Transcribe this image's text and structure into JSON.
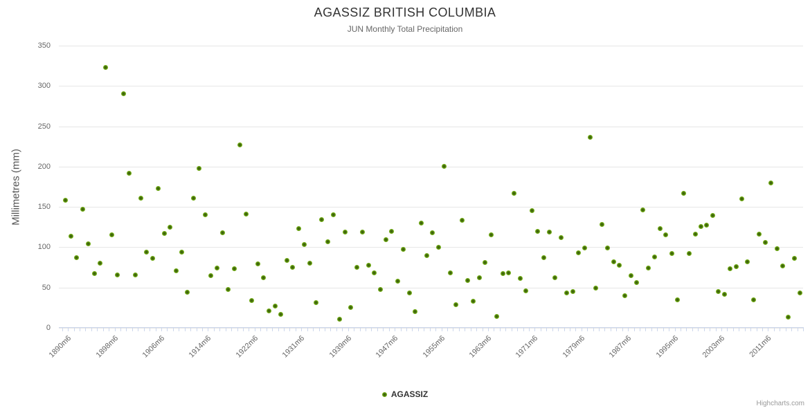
{
  "header": {
    "title": "AGASSIZ BRITISH COLUMBIA",
    "subtitle": "JUN Monthly Total Precipitation"
  },
  "legend": {
    "items": [
      {
        "label": "AGASSIZ",
        "marker": "circle-icon"
      }
    ]
  },
  "credits": {
    "label": "Highcharts.com"
  },
  "colors": {
    "point_outer": "#7ab41d",
    "point_inner": "#3f650d",
    "grid": "#e6e6e6",
    "axis_line": "#ccd6eb",
    "text_primary": "#333333",
    "text_secondary": "#666666"
  },
  "chart_data": {
    "type": "scatter",
    "title": "AGASSIZ BRITISH COLUMBIA",
    "subtitle": "JUN Monthly Total Precipitation",
    "xlabel": "",
    "ylabel": "Millimetres (mm)",
    "ylim": [
      0,
      350
    ],
    "y_ticks": [
      0,
      50,
      100,
      150,
      200,
      250,
      300,
      350
    ],
    "grid": true,
    "legend_position": "bottom-center",
    "x_tick_positions": [
      0,
      8,
      16,
      24,
      32,
      40,
      48,
      56,
      64,
      72,
      80,
      88,
      96,
      104,
      112,
      120
    ],
    "x_tick_labels": [
      "1890m6",
      "1898m6",
      "1906m6",
      "1914m6",
      "1922m6",
      "1931m6",
      "1939m6",
      "1947m6",
      "1955m6",
      "1963m6",
      "1971m6",
      "1979m6",
      "1987m6",
      "1995m6",
      "2003m6",
      "2011m6"
    ],
    "series": [
      {
        "name": "AGASSIZ",
        "color": "#7ab41d",
        "values": [
          158,
          114,
          87,
          147,
          104,
          67,
          80,
          323,
          115,
          66,
          290,
          192,
          66,
          161,
          94,
          86,
          173,
          117,
          125,
          71,
          94,
          44,
          161,
          198,
          140,
          65,
          74,
          118,
          48,
          73,
          227,
          141,
          34,
          79,
          62,
          21,
          27,
          17,
          84,
          75,
          123,
          103,
          80,
          31,
          134,
          107,
          140,
          11,
          119,
          25,
          75,
          119,
          78,
          68,
          48,
          109,
          120,
          58,
          97,
          43,
          20,
          130,
          90,
          118,
          100,
          200,
          68,
          29,
          133,
          59,
          33,
          62,
          81,
          115,
          14,
          67,
          68,
          167,
          61,
          46,
          145,
          120,
          87,
          119,
          62,
          112,
          43,
          45,
          93,
          99,
          236,
          49,
          128,
          99,
          82,
          78,
          40,
          65,
          56,
          146,
          74,
          88,
          123,
          115,
          92,
          35,
          167,
          92,
          116,
          126,
          127,
          139,
          45,
          42,
          73,
          76,
          160,
          82,
          35,
          116,
          106,
          180,
          98,
          77,
          13,
          86,
          43
        ]
      }
    ]
  }
}
